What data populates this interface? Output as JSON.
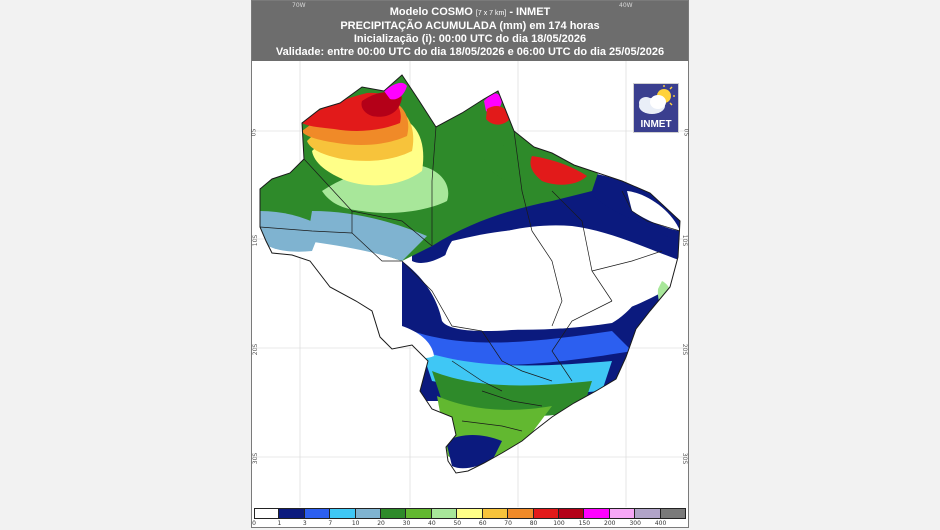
{
  "header": {
    "model": "Modelo COSMO",
    "resolution": "[7 x 7 km]",
    "source": "- INMET",
    "title": "PRECIPITAÇÃO ACUMULADA (mm) em 174 horas",
    "initialization": "Inicialização (i): 00:00 UTC do dia 18/05/2026",
    "validity": "Validade: entre 00:00 UTC do dia 18/05/2026 e 06:00 UTC do dia 25/05/2026"
  },
  "grid": {
    "longitudes": [
      "70W",
      "40W"
    ],
    "latitudes": [
      "0S",
      "10S",
      "20S",
      "30S"
    ]
  },
  "logo": {
    "text": "INMET",
    "icon": "cloud-sun-icon"
  },
  "colorbar": {
    "labels": [
      "0",
      "1",
      "3",
      "7",
      "10",
      "20",
      "30",
      "40",
      "50",
      "60",
      "70",
      "80",
      "100",
      "150",
      "200",
      "300",
      "400"
    ],
    "colors": [
      "#ffffff",
      "#0b1a7e",
      "#2c5ff0",
      "#3fc7f5",
      "#7fb3d0",
      "#2e8a2a",
      "#62b830",
      "#a8e79a",
      "#ffff88",
      "#f7c33b",
      "#f08a28",
      "#e21a1a",
      "#b40018",
      "#ff00ff",
      "#f7a7f7",
      "#b1a4c8",
      "#7a7a7a"
    ]
  },
  "colors": {
    "header_bg": "#6d6d6d",
    "state_border": "#1a1a1a"
  }
}
